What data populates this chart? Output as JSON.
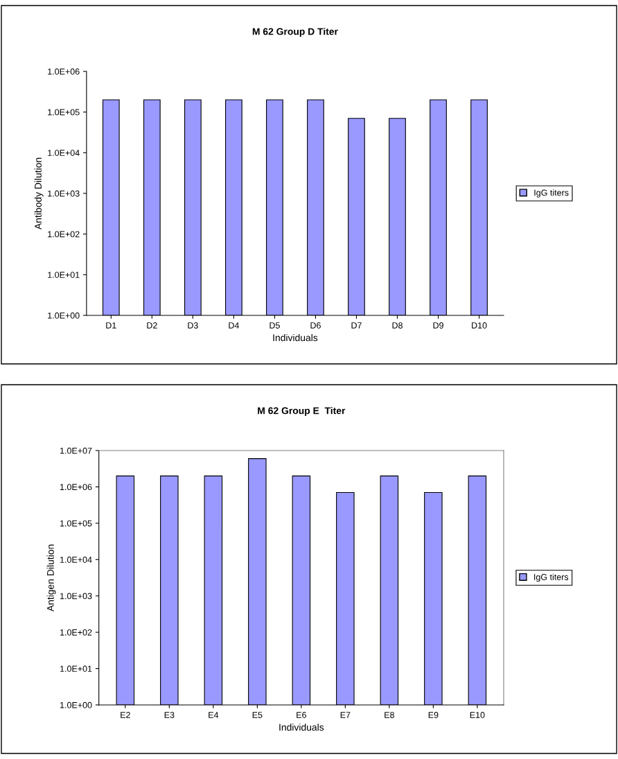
{
  "chart_data": [
    {
      "type": "bar",
      "title": "M 62 Group D Titer",
      "xlabel": "Individuals",
      "ylabel": "Antibody Dilution",
      "log": true,
      "grid": false,
      "legend": "right",
      "categories": [
        "D1",
        "D2",
        "D3",
        "D4",
        "D5",
        "D6",
        "D7",
        "D8",
        "D9",
        "D10"
      ],
      "series": [
        {
          "name": "IgG titers",
          "color": "#9999ff",
          "values": [
            200000,
            200000,
            200000,
            200000,
            200000,
            200000,
            70000,
            70000,
            200000,
            200000
          ]
        }
      ],
      "ylim": [
        1,
        1000000
      ],
      "yticks": [
        {
          "value": 1,
          "label": "1.0E+00"
        },
        {
          "value": 10,
          "label": "1.0E+01"
        },
        {
          "value": 100,
          "label": "1.0E+02"
        },
        {
          "value": 1000,
          "label": "1.0E+03"
        },
        {
          "value": 10000,
          "label": "1.0E+04"
        },
        {
          "value": 100000,
          "label": "1.0E+05"
        },
        {
          "value": 1000000,
          "label": "1.0E+06"
        }
      ]
    },
    {
      "type": "bar",
      "title": "M 62 Group E  Titer",
      "xlabel": "Individuals",
      "ylabel": "Antigen Dilution",
      "log": true,
      "grid": false,
      "legend": "right",
      "categories": [
        "E2",
        "E3",
        "E4",
        "E5",
        "E6",
        "E7",
        "E8",
        "E9",
        "E10"
      ],
      "series": [
        {
          "name": "IgG titers",
          "color": "#9999ff",
          "values": [
            2000000,
            2000000,
            2000000,
            6000000,
            2000000,
            700000,
            2000000,
            700000,
            2000000
          ]
        }
      ],
      "ylim": [
        1,
        10000000
      ],
      "yticks": [
        {
          "value": 1,
          "label": "1.0E+00"
        },
        {
          "value": 10,
          "label": "1.0E+01"
        },
        {
          "value": 100,
          "label": "1.0E+02"
        },
        {
          "value": 1000,
          "label": "1.0E+03"
        },
        {
          "value": 10000,
          "label": "1.0E+04"
        },
        {
          "value": 100000,
          "label": "1.0E+05"
        },
        {
          "value": 1000000,
          "label": "1.0E+06"
        },
        {
          "value": 10000000,
          "label": "1.0E+07"
        }
      ]
    }
  ]
}
